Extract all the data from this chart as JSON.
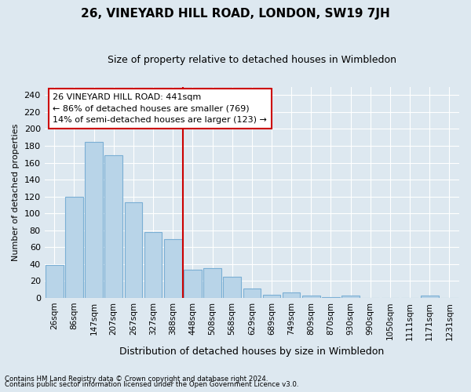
{
  "title": "26, VINEYARD HILL ROAD, LONDON, SW19 7JH",
  "subtitle": "Size of property relative to detached houses in Wimbledon",
  "xlabel": "Distribution of detached houses by size in Wimbledon",
  "ylabel": "Number of detached properties",
  "categories": [
    "26sqm",
    "86sqm",
    "147sqm",
    "207sqm",
    "267sqm",
    "327sqm",
    "388sqm",
    "448sqm",
    "508sqm",
    "568sqm",
    "629sqm",
    "689sqm",
    "749sqm",
    "809sqm",
    "870sqm",
    "930sqm",
    "990sqm",
    "1050sqm",
    "1111sqm",
    "1171sqm",
    "1231sqm"
  ],
  "values": [
    39,
    120,
    185,
    169,
    113,
    78,
    70,
    33,
    35,
    25,
    11,
    4,
    7,
    3,
    1,
    3,
    0,
    0,
    0,
    3,
    0
  ],
  "bar_color": "#b8d4e8",
  "bar_edge_color": "#7aafd4",
  "vline_index": 7,
  "vline_color": "#cc0000",
  "annotation_text": "26 VINEYARD HILL ROAD: 441sqm\n← 86% of detached houses are smaller (769)\n14% of semi-detached houses are larger (123) →",
  "annotation_box_facecolor": "#ffffff",
  "annotation_box_edgecolor": "#cc0000",
  "ylim": [
    0,
    250
  ],
  "yticks": [
    0,
    20,
    40,
    60,
    80,
    100,
    120,
    140,
    160,
    180,
    200,
    220,
    240
  ],
  "footer1": "Contains HM Land Registry data © Crown copyright and database right 2024.",
  "footer2": "Contains public sector information licensed under the Open Government Licence v3.0.",
  "bg_color": "#dde8f0",
  "plot_bg_color": "#dde8f0",
  "grid_color": "#ffffff",
  "title_fontsize": 11,
  "subtitle_fontsize": 9,
  "ylabel_fontsize": 8,
  "xlabel_fontsize": 9,
  "tick_fontsize": 8,
  "xtick_fontsize": 7.5
}
